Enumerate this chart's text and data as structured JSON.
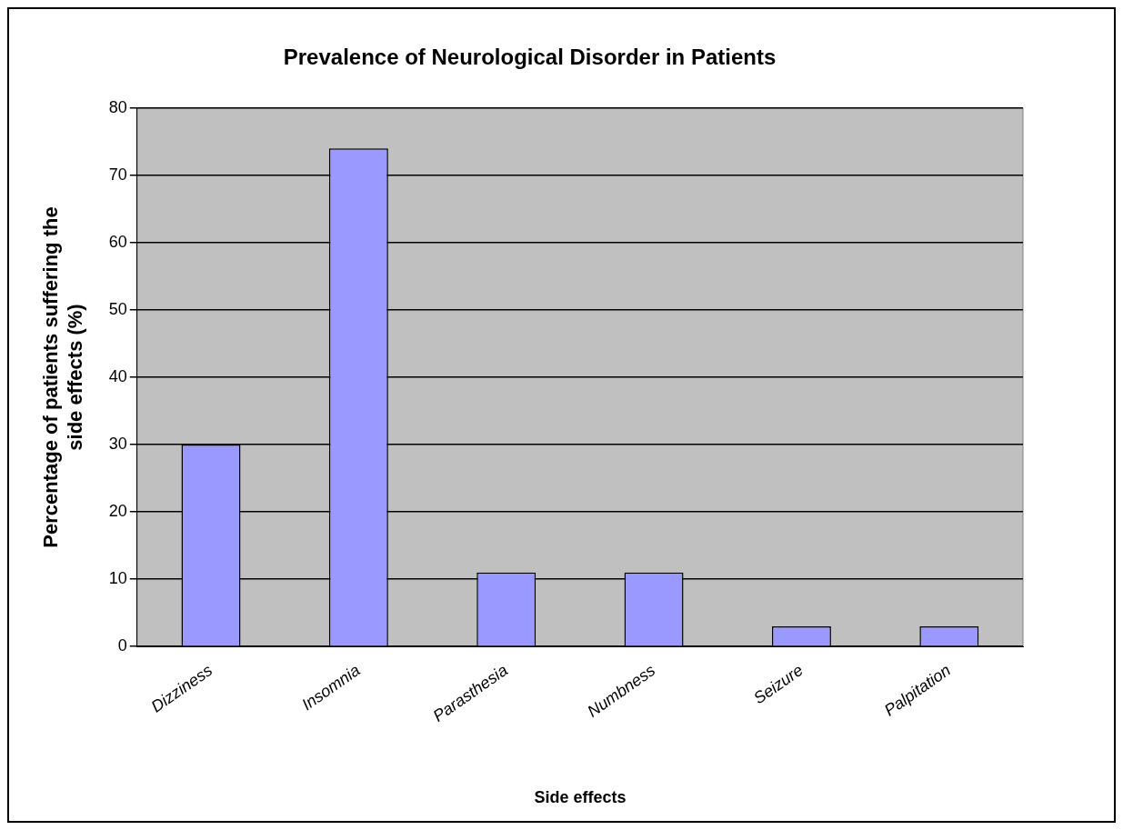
{
  "chart_data": {
    "type": "bar",
    "title": "Prevalence of Neurological Disorder in Patients",
    "xlabel": "Side effects",
    "ylabel": "Percentage of patients suffering the side effects (%)",
    "categories": [
      "Dizziness",
      "Insomnia",
      "Parasthesia",
      "Numbness",
      "Seizure",
      "Palpitation"
    ],
    "values": [
      30,
      74,
      11,
      11,
      3,
      3
    ],
    "color": "#9999ff",
    "ylim": [
      0,
      80
    ],
    "yticks": [
      0,
      10,
      20,
      30,
      40,
      50,
      60,
      70,
      80
    ],
    "grid": "y",
    "legend": false
  }
}
